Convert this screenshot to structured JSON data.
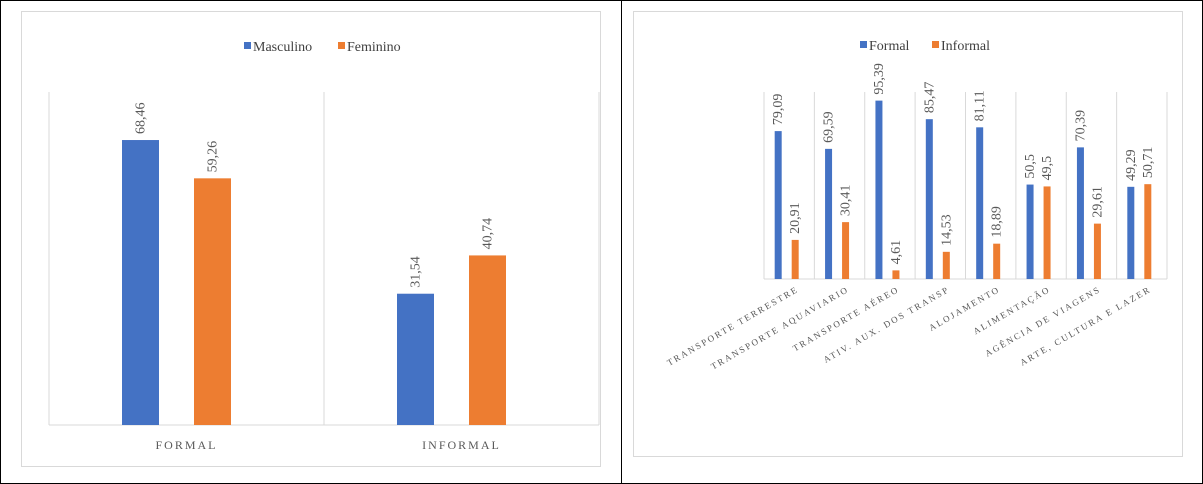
{
  "colors": {
    "series1": "#4472c4",
    "series2": "#ed7d31",
    "gridline": "#d9d9d9"
  },
  "charts": [
    {
      "type": "bar",
      "categories": [
        "FORMAL",
        "INFORMAL"
      ],
      "series": [
        {
          "name": "Masculino",
          "values": [
            68.46,
            31.54
          ],
          "labels": [
            "68,46",
            "31,54"
          ]
        },
        {
          "name": "Feminino",
          "values": [
            59.26,
            40.74
          ],
          "labels": [
            "59,26",
            "40,74"
          ]
        }
      ],
      "ylim": [
        0,
        80
      ],
      "legend": "top",
      "grid": "vertical category separators",
      "title": "",
      "xlabel": "",
      "ylabel": ""
    },
    {
      "type": "bar",
      "categories": [
        "TRANSPORTE TERRESTRE",
        "TRANSPORTE AQUAVIARIO",
        "TRANSPORTE AÉREO",
        "ATIV. AUX. DOS TRANSP",
        "ALOJAMENTO",
        "ALIMENTAÇÃO",
        "AGÊNCIA DE VIAGENS",
        "ARTE, CULTURA E LAZER"
      ],
      "series": [
        {
          "name": "Formal",
          "values": [
            79.09,
            69.59,
            95.39,
            85.47,
            81.11,
            50.5,
            70.39,
            49.29
          ],
          "labels": [
            "79,09",
            "69,59",
            "95,39",
            "85,47",
            "81,11",
            "50,5",
            "70,39",
            "49,29"
          ]
        },
        {
          "name": "Informal",
          "values": [
            20.91,
            30.41,
            4.61,
            14.53,
            18.89,
            49.5,
            29.61,
            50.71
          ],
          "labels": [
            "20,91",
            "30,41",
            "4,61",
            "14,53",
            "18,89",
            "49,5",
            "29,61",
            "50,71"
          ]
        }
      ],
      "ylim": [
        0,
        100
      ],
      "legend": "top",
      "grid": "vertical category separators",
      "title": "",
      "xlabel": "",
      "ylabel": ""
    }
  ],
  "chart_data": [
    {
      "type": "bar",
      "categories": [
        "FORMAL",
        "INFORMAL"
      ],
      "series": [
        {
          "name": "Masculino",
          "values": [
            68.46,
            31.54
          ]
        },
        {
          "name": "Feminino",
          "values": [
            59.26,
            40.74
          ]
        }
      ],
      "ylim": [
        0,
        80
      ],
      "legend": "top"
    },
    {
      "type": "bar",
      "categories": [
        "TRANSPORTE TERRESTRE",
        "TRANSPORTE AQUAVIARIO",
        "TRANSPORTE AÉREO",
        "ATIV. AUX. DOS TRANSP",
        "ALOJAMENTO",
        "ALIMENTAÇÃO",
        "AGÊNCIA DE VIAGENS",
        "ARTE, CULTURA E LAZER"
      ],
      "series": [
        {
          "name": "Formal",
          "values": [
            79.09,
            69.59,
            95.39,
            85.47,
            81.11,
            50.5,
            70.39,
            49.29
          ]
        },
        {
          "name": "Informal",
          "values": [
            20.91,
            30.41,
            4.61,
            14.53,
            18.89,
            49.5,
            29.61,
            50.71
          ]
        }
      ],
      "ylim": [
        0,
        100
      ],
      "legend": "top"
    }
  ]
}
